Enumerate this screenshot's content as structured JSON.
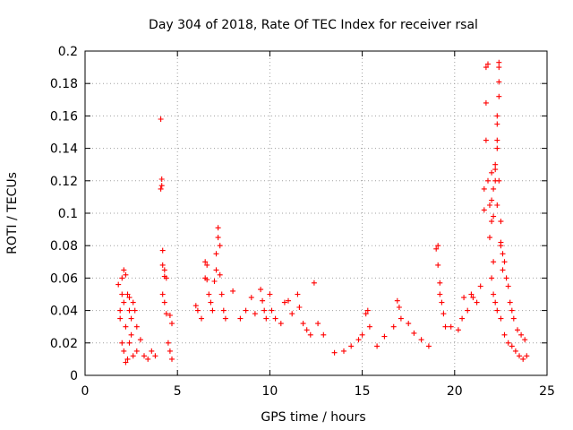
{
  "chart_data": {
    "type": "scatter",
    "title": "Day 304 of 2018, Rate Of TEC Index for receiver rsal",
    "xlabel": "GPS time / hours",
    "ylabel": "ROTI / TECUs",
    "xlim": [
      0,
      25
    ],
    "ylim": [
      0,
      0.2
    ],
    "xticks": [
      0,
      5,
      10,
      15,
      20,
      25
    ],
    "xtick_labels": [
      "0",
      "5",
      "10",
      "15",
      "20",
      "25"
    ],
    "yticks": [
      0,
      0.02,
      0.04,
      0.06,
      0.08,
      0.1,
      0.12,
      0.14,
      0.16,
      0.18,
      0.2
    ],
    "ytick_labels": [
      "0",
      "0.02",
      "0.04",
      "0.06",
      "0.08",
      "0.1",
      "0.12",
      "0.14",
      "0.16",
      "0.18",
      "0.2"
    ],
    "grid": true,
    "marker": "+",
    "color": "#ff0000",
    "series": [
      {
        "name": "ROTI",
        "points": [
          [
            1.8,
            0.056
          ],
          [
            1.9,
            0.04
          ],
          [
            1.9,
            0.035
          ],
          [
            2.0,
            0.06
          ],
          [
            2.0,
            0.05
          ],
          [
            2.1,
            0.065
          ],
          [
            2.1,
            0.045
          ],
          [
            2.2,
            0.062
          ],
          [
            2.2,
            0.03
          ],
          [
            2.3,
            0.05
          ],
          [
            2.4,
            0.048
          ],
          [
            2.4,
            0.04
          ],
          [
            2.5,
            0.035
          ],
          [
            2.6,
            0.045
          ],
          [
            2.7,
            0.04
          ],
          [
            2.8,
            0.03
          ],
          [
            2.0,
            0.02
          ],
          [
            2.1,
            0.015
          ],
          [
            2.2,
            0.008
          ],
          [
            2.3,
            0.01
          ],
          [
            2.4,
            0.02
          ],
          [
            2.5,
            0.025
          ],
          [
            2.6,
            0.012
          ],
          [
            2.8,
            0.015
          ],
          [
            3.0,
            0.022
          ],
          [
            3.2,
            0.012
          ],
          [
            3.4,
            0.01
          ],
          [
            3.6,
            0.015
          ],
          [
            3.8,
            0.012
          ],
          [
            4.1,
            0.158
          ],
          [
            4.15,
            0.121
          ],
          [
            4.15,
            0.117
          ],
          [
            4.1,
            0.115
          ],
          [
            4.2,
            0.077
          ],
          [
            4.2,
            0.068
          ],
          [
            4.3,
            0.065
          ],
          [
            4.3,
            0.061
          ],
          [
            4.4,
            0.06
          ],
          [
            4.2,
            0.05
          ],
          [
            4.3,
            0.045
          ],
          [
            4.4,
            0.038
          ],
          [
            4.6,
            0.037
          ],
          [
            4.7,
            0.032
          ],
          [
            4.5,
            0.02
          ],
          [
            4.6,
            0.015
          ],
          [
            4.7,
            0.01
          ],
          [
            6.0,
            0.043
          ],
          [
            6.1,
            0.04
          ],
          [
            6.3,
            0.035
          ],
          [
            6.5,
            0.07
          ],
          [
            6.5,
            0.06
          ],
          [
            6.6,
            0.068
          ],
          [
            6.6,
            0.059
          ],
          [
            6.7,
            0.05
          ],
          [
            6.8,
            0.045
          ],
          [
            6.9,
            0.04
          ],
          [
            7.0,
            0.058
          ],
          [
            7.1,
            0.075
          ],
          [
            7.1,
            0.065
          ],
          [
            7.2,
            0.085
          ],
          [
            7.2,
            0.091
          ],
          [
            7.3,
            0.08
          ],
          [
            7.3,
            0.062
          ],
          [
            7.4,
            0.05
          ],
          [
            7.5,
            0.04
          ],
          [
            7.6,
            0.035
          ],
          [
            8.0,
            0.052
          ],
          [
            8.4,
            0.035
          ],
          [
            8.7,
            0.04
          ],
          [
            9.0,
            0.048
          ],
          [
            9.2,
            0.038
          ],
          [
            9.5,
            0.053
          ],
          [
            9.6,
            0.046
          ],
          [
            9.7,
            0.04
          ],
          [
            9.8,
            0.035
          ],
          [
            10.0,
            0.05
          ],
          [
            10.1,
            0.04
          ],
          [
            10.3,
            0.035
          ],
          [
            10.6,
            0.032
          ],
          [
            10.8,
            0.045
          ],
          [
            11.0,
            0.046
          ],
          [
            11.2,
            0.038
          ],
          [
            11.5,
            0.05
          ],
          [
            11.6,
            0.042
          ],
          [
            11.8,
            0.032
          ],
          [
            12.0,
            0.028
          ],
          [
            12.2,
            0.025
          ],
          [
            12.4,
            0.057
          ],
          [
            12.6,
            0.032
          ],
          [
            12.9,
            0.025
          ],
          [
            13.5,
            0.014
          ],
          [
            14.0,
            0.015
          ],
          [
            14.4,
            0.018
          ],
          [
            14.8,
            0.022
          ],
          [
            15.0,
            0.025
          ],
          [
            15.2,
            0.038
          ],
          [
            15.3,
            0.04
          ],
          [
            15.4,
            0.03
          ],
          [
            15.8,
            0.018
          ],
          [
            16.2,
            0.024
          ],
          [
            16.7,
            0.03
          ],
          [
            16.9,
            0.046
          ],
          [
            17.0,
            0.042
          ],
          [
            17.1,
            0.035
          ],
          [
            17.5,
            0.032
          ],
          [
            17.8,
            0.026
          ],
          [
            18.2,
            0.022
          ],
          [
            18.6,
            0.018
          ],
          [
            19.0,
            0.078
          ],
          [
            19.1,
            0.08
          ],
          [
            19.1,
            0.068
          ],
          [
            19.2,
            0.057
          ],
          [
            19.2,
            0.05
          ],
          [
            19.3,
            0.045
          ],
          [
            19.4,
            0.038
          ],
          [
            19.5,
            0.03
          ],
          [
            19.8,
            0.03
          ],
          [
            20.2,
            0.028
          ],
          [
            20.4,
            0.035
          ],
          [
            20.5,
            0.048
          ],
          [
            20.7,
            0.04
          ],
          [
            20.9,
            0.05
          ],
          [
            21.0,
            0.048
          ],
          [
            21.2,
            0.045
          ],
          [
            21.4,
            0.055
          ],
          [
            21.6,
            0.115
          ],
          [
            21.6,
            0.102
          ],
          [
            21.7,
            0.145
          ],
          [
            21.7,
            0.168
          ],
          [
            21.7,
            0.19
          ],
          [
            21.8,
            0.192
          ],
          [
            21.8,
            0.12
          ],
          [
            21.9,
            0.105
          ],
          [
            21.9,
            0.085
          ],
          [
            22.0,
            0.125
          ],
          [
            22.0,
            0.108
          ],
          [
            22.0,
            0.095
          ],
          [
            22.1,
            0.115
          ],
          [
            22.1,
            0.098
          ],
          [
            22.1,
            0.07
          ],
          [
            22.2,
            0.127
          ],
          [
            22.2,
            0.12
          ],
          [
            22.2,
            0.13
          ],
          [
            22.3,
            0.145
          ],
          [
            22.3,
            0.155
          ],
          [
            22.3,
            0.16
          ],
          [
            22.3,
            0.14
          ],
          [
            22.3,
            0.105
          ],
          [
            22.4,
            0.193
          ],
          [
            22.4,
            0.19
          ],
          [
            22.4,
            0.172
          ],
          [
            22.4,
            0.181
          ],
          [
            22.4,
            0.12
          ],
          [
            22.5,
            0.095
          ],
          [
            22.5,
            0.082
          ],
          [
            22.5,
            0.08
          ],
          [
            22.6,
            0.075
          ],
          [
            22.6,
            0.065
          ],
          [
            22.7,
            0.07
          ],
          [
            22.8,
            0.06
          ],
          [
            22.9,
            0.055
          ],
          [
            23.0,
            0.045
          ],
          [
            23.1,
            0.04
          ],
          [
            23.2,
            0.035
          ],
          [
            23.4,
            0.028
          ],
          [
            23.6,
            0.025
          ],
          [
            23.8,
            0.022
          ],
          [
            22.0,
            0.06
          ],
          [
            22.1,
            0.05
          ],
          [
            22.2,
            0.045
          ],
          [
            22.3,
            0.04
          ],
          [
            22.5,
            0.035
          ],
          [
            22.7,
            0.025
          ],
          [
            22.9,
            0.02
          ],
          [
            23.1,
            0.018
          ],
          [
            23.3,
            0.015
          ],
          [
            23.5,
            0.012
          ],
          [
            23.7,
            0.01
          ],
          [
            23.9,
            0.012
          ]
        ]
      }
    ]
  }
}
